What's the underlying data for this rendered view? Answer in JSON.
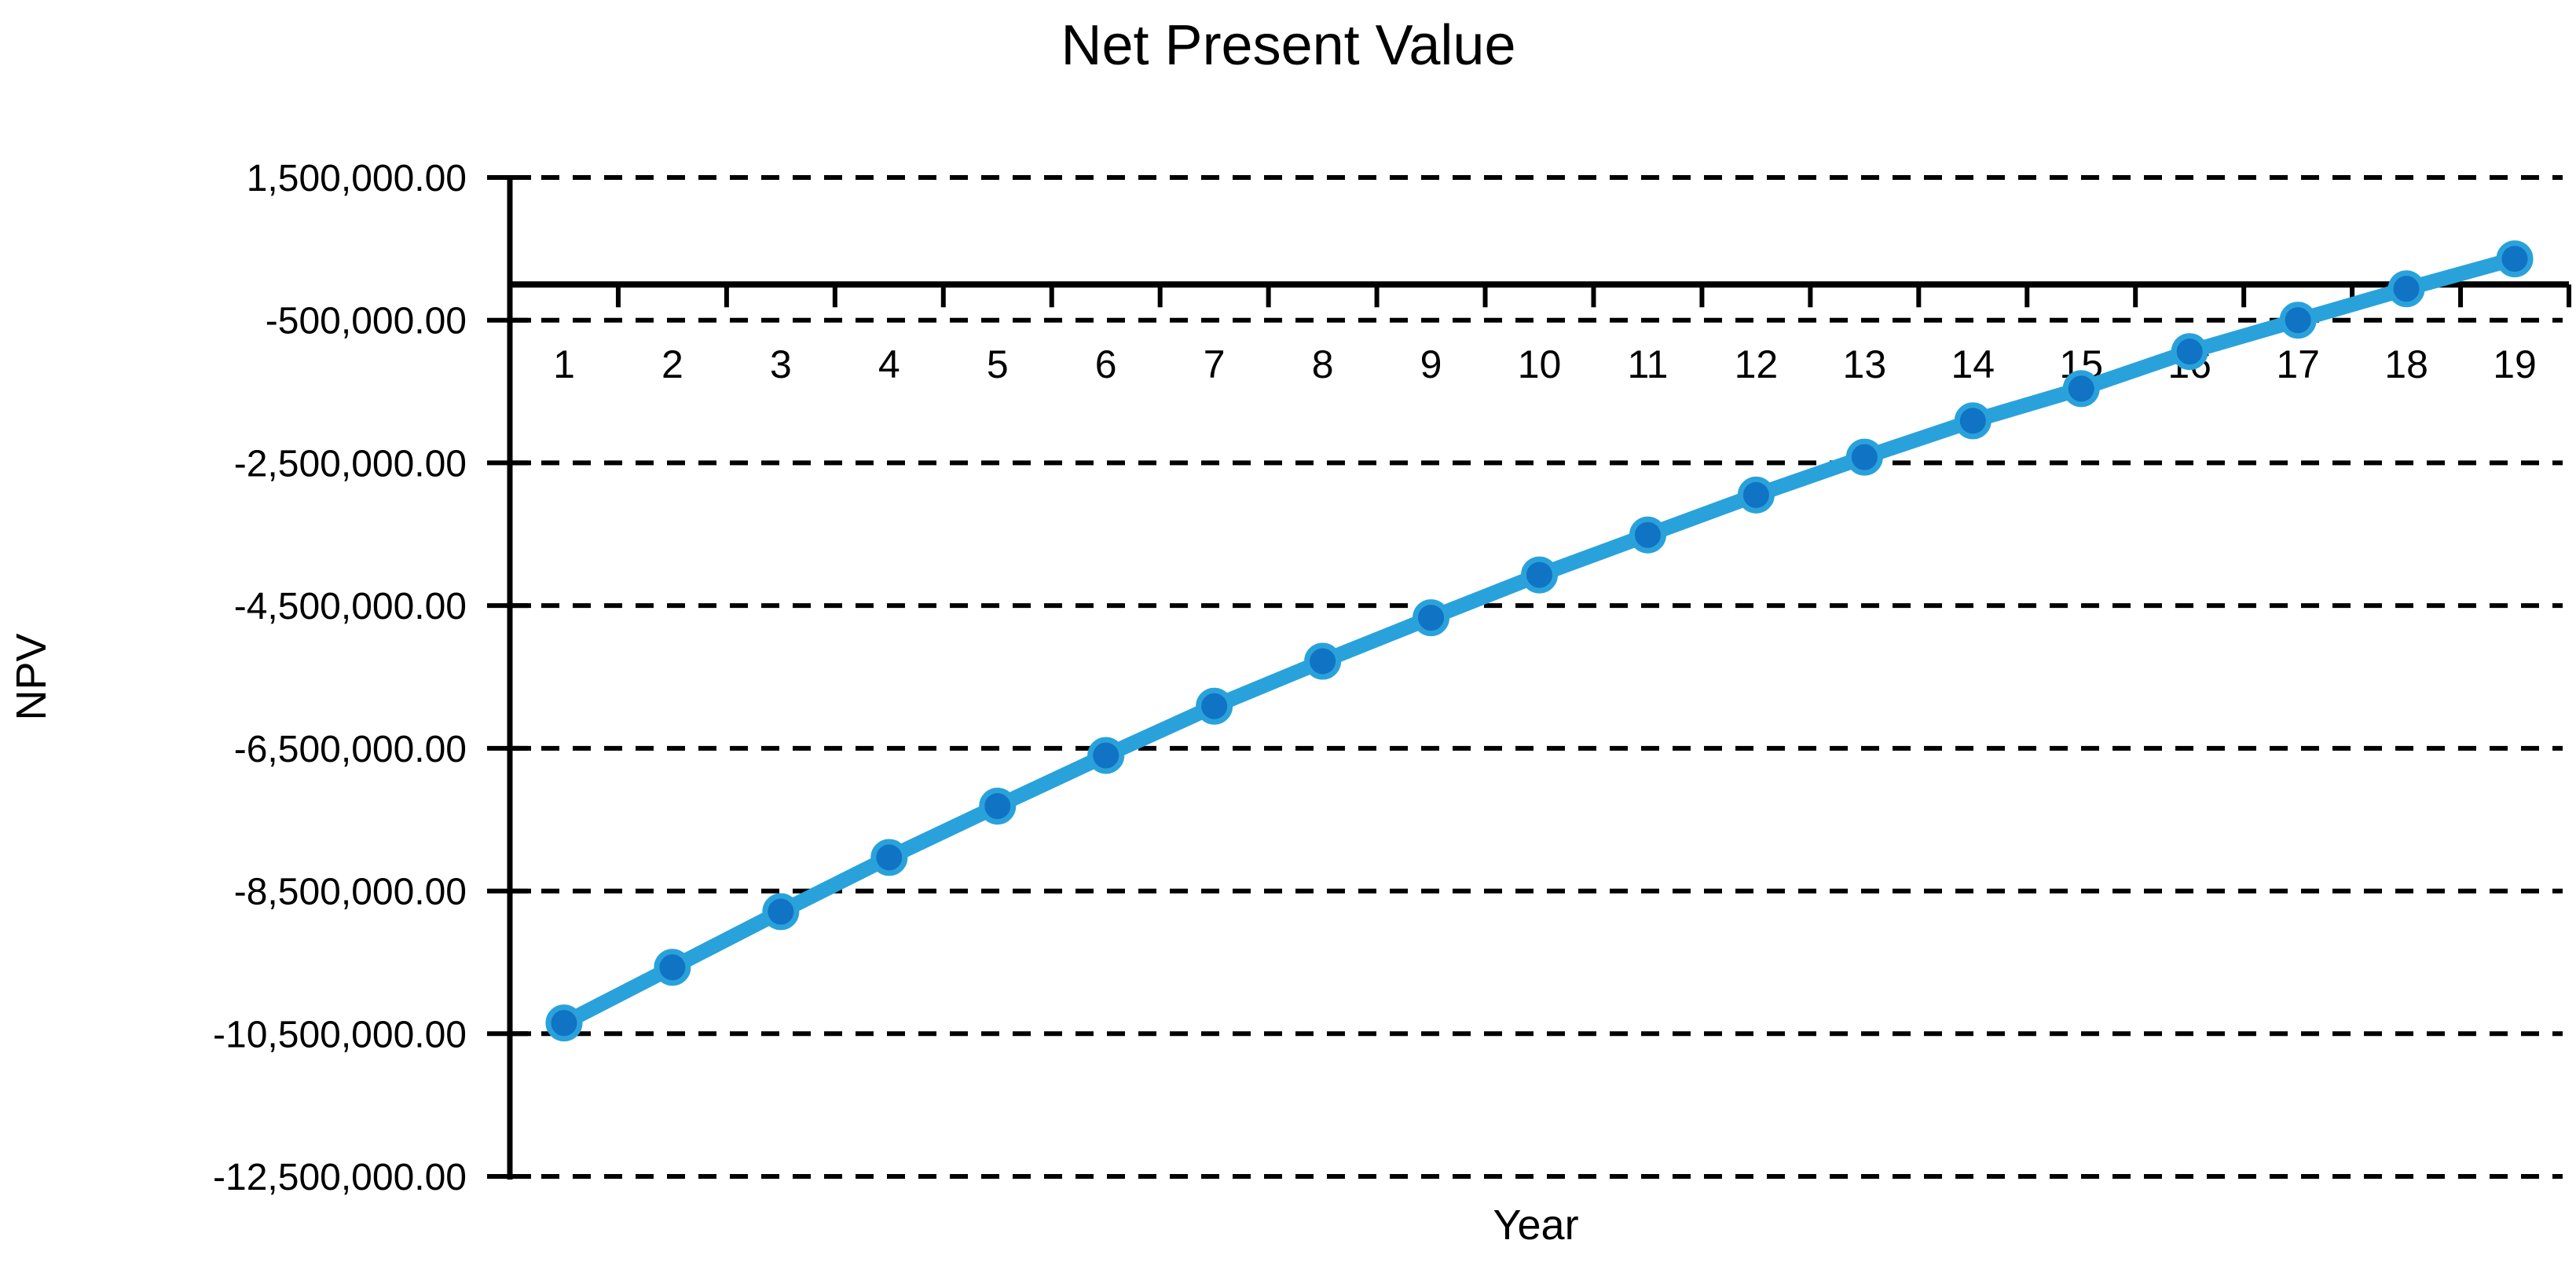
{
  "chart_data": {
    "type": "line",
    "title": "Net Present Value",
    "xlabel": "Year",
    "ylabel": "NPV",
    "series_name": "NPV",
    "categories": [
      1,
      2,
      3,
      4,
      5,
      6,
      7,
      8,
      9,
      10,
      11,
      12,
      13,
      14,
      15,
      16,
      17,
      18,
      19
    ],
    "values": [
      -10350000,
      -9570000,
      -8790000,
      -8030000,
      -7310000,
      -6600000,
      -5910000,
      -5280000,
      -4670000,
      -4070000,
      -3510000,
      -2950000,
      -2420000,
      -1910000,
      -1460000,
      -940000,
      -500000,
      -60000,
      360000
    ],
    "ylim": [
      -12500000,
      1500000
    ],
    "ytick_step": 2000000,
    "ytick_values": [
      1500000,
      -500000,
      -2500000,
      -4500000,
      -6500000,
      -8500000,
      -10500000,
      -12500000
    ],
    "ytick_labels": [
      "1,500,000.00",
      "-500,000.00",
      "-2,500,000.00",
      "-4,500,000.00",
      "-6,500,000.00",
      "-8,500,000.00",
      "-10,500,000.00",
      "-12,500,000.00"
    ],
    "grid": "horizontal-dashed",
    "legend": "none",
    "colors": {
      "line": "#29A2DB",
      "marker_fill": "#1173C4",
      "axis": "#000000",
      "gridline": "#000000",
      "text": "#000000",
      "background": "#FFFFFF"
    }
  }
}
